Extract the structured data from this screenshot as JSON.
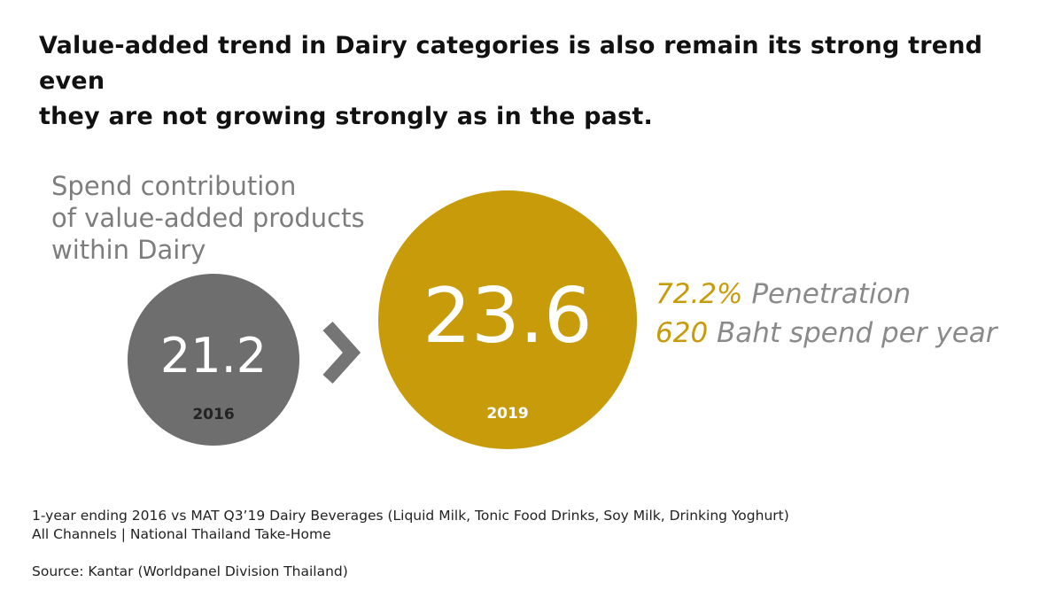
{
  "headline": {
    "line1": "Value-added trend in Dairy categories is also remain its strong trend even",
    "line2": "they are not growing strongly as in the past."
  },
  "subtitle": {
    "line1": "Spend contribution",
    "line2": "of value-added products",
    "line3": "within Dairy"
  },
  "chart_data": {
    "type": "bubble-comparison",
    "title": "Spend contribution of value-added products within Dairy",
    "points": [
      {
        "year": "2016",
        "value": 21.2,
        "value_label": "21.2",
        "color": "#6e6e6e"
      },
      {
        "year": "2019",
        "value": 23.6,
        "value_label": "23.6",
        "color": "#c89b0b"
      }
    ],
    "transition_symbol": ">"
  },
  "metrics": {
    "penetration_value": "72.2%",
    "penetration_label": "Penetration",
    "spend_value": "620",
    "spend_label": "Baht spend per year"
  },
  "colors": {
    "accent": "#c89b0b",
    "grey": "#6e6e6e",
    "text_grey": "#7d7d7d",
    "arrow": "#757575"
  },
  "footnote": {
    "line1": "1-year ending 2016 vs MAT Q3’19 Dairy Beverages (Liquid Milk, Tonic Food Drinks, Soy Milk, Drinking Yoghurt)",
    "line2": "All Channels | National Thailand Take-Home"
  },
  "source": "Source: Kantar (Worldpanel Division Thailand)"
}
